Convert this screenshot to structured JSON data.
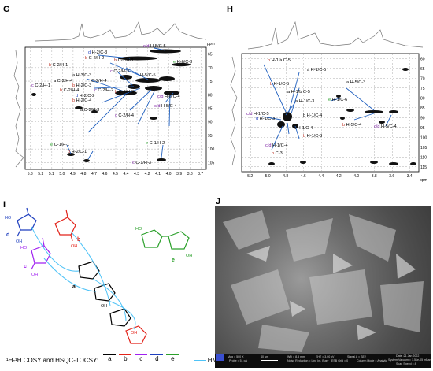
{
  "panels": {
    "G": {
      "letter": "G",
      "ppm_label": "ppm",
      "x_ticks": [
        "5.3",
        "5.2",
        "5.1",
        "5.0",
        "4.9",
        "4.8",
        "4.7",
        "4.6",
        "4.5",
        "4.4",
        "4.3",
        "4.2",
        "4.1",
        "4.0",
        "3.9",
        "3.8",
        "3.7"
      ],
      "y_ticks": [
        "65",
        "70",
        "75",
        "80",
        "85",
        "90",
        "95",
        "100",
        "105"
      ],
      "labels": [
        {
          "pre": "c/d",
          "text": "H-5/C-5"
        },
        {
          "pre": "d",
          "text": "H-2/C-3"
        },
        {
          "pre": "b",
          "text": "C-2/H-2"
        },
        {
          "pre": "b",
          "text": "C-2/H-3"
        },
        {
          "pre": "e",
          "text": "H-6/C-3"
        },
        {
          "pre": "b",
          "text": "C-2/H-1"
        },
        {
          "pre": "c",
          "text": "C-2/H-3"
        },
        {
          "pre": "a",
          "text": "H-3/C-3"
        },
        {
          "pre": "",
          "text": "H-5/C-5"
        },
        {
          "pre": "a",
          "text": "C-2/H-4"
        },
        {
          "pre": "",
          "text": "C-2/H-4"
        },
        {
          "pre": "c",
          "text": "C-2/H-1"
        },
        {
          "pre": "b",
          "text": "H-2/C-3"
        },
        {
          "pre": "b",
          "text": "C-2/H-4"
        },
        {
          "pre": "c",
          "text": "C-2/H-2"
        },
        {
          "pre": "b",
          "text": "C-2/H-5"
        },
        {
          "pre": "d",
          "text": "H-2/C-2"
        },
        {
          "pre": "c/d",
          "text": "H-6/C-4"
        },
        {
          "pre": "b",
          "text": "H-2/C-4"
        },
        {
          "pre": "c/d",
          "text": "H-5/C-4"
        },
        {
          "pre": "a",
          "text": "C-2/H-3"
        },
        {
          "pre": "c",
          "text": "C-2/H-4"
        },
        {
          "pre": "e",
          "text": "C-1/H-1"
        },
        {
          "pre": "e",
          "text": "C-1/H-2"
        },
        {
          "pre": "b",
          "text": "H-2/C-1"
        },
        {
          "pre": "c",
          "text": "C-1/H-3"
        }
      ]
    },
    "H": {
      "letter": "H",
      "ppm_label": "ppm",
      "x_ticks": [
        "5.2",
        "5.0",
        "4.8",
        "4.6",
        "4.4",
        "4.2",
        "4.0",
        "3.8",
        "3.6",
        "3.4"
      ],
      "y_ticks": [
        "60",
        "65",
        "70",
        "75",
        "80",
        "85",
        "90",
        "95",
        "100",
        "105",
        "110",
        "115"
      ],
      "labels": [
        {
          "pre": "b",
          "text": "H-1/a C-5"
        },
        {
          "pre": "",
          "text": "a H-1/C-5"
        },
        {
          "pre": "b",
          "text": "H-1/C-5"
        },
        {
          "pre": "",
          "text": "a H-1/b C-5"
        },
        {
          "pre": "a",
          "text": "H-5/C-3"
        },
        {
          "pre": "a",
          "text": "H-1/C-3"
        },
        {
          "pre": "c/d",
          "text": "H-1/C-5"
        },
        {
          "pre": "d",
          "text": "H-1/C-3"
        },
        {
          "pre": "e",
          "text": "H-1/C-6"
        },
        {
          "pre": "",
          "text": "b H-1/C-4"
        },
        {
          "pre": "a",
          "text": "H-1/C-4"
        },
        {
          "pre": "b",
          "text": "H-5/C-4"
        },
        {
          "pre": "c/d",
          "text": "H-5/C-4"
        },
        {
          "pre": "b",
          "text": "H-1/C-3"
        },
        {
          "pre": "c/d",
          "text": "H-1/C-4"
        },
        {
          "pre": "b",
          "text": "C-3"
        }
      ]
    },
    "I": {
      "letter": "I",
      "residue_labels": [
        "d",
        "c",
        "b",
        "a",
        "e"
      ],
      "substituents": [
        "HO",
        "OH",
        "HO",
        "OH",
        "OH",
        "OH",
        "OH",
        "HO",
        "OH"
      ],
      "legend": {
        "cosy_text": "¹H-¹H COSY and HSQC-TOCSY:",
        "keys": [
          {
            "letter": "a",
            "color": "#000000"
          },
          {
            "letter": "b",
            "color": "#e2231a"
          },
          {
            "letter": "c",
            "color": "#a020f0"
          },
          {
            "letter": "d",
            "color": "#1f3fbf"
          },
          {
            "letter": "e",
            "color": "#2aa02a"
          }
        ],
        "hmbc_text": "HMBC"
      }
    },
    "J": {
      "letter": "J",
      "info": [
        "Mag = 500 X",
        "WD = 8.5 mm",
        "EHT = 3.00 kV",
        "Signal A = SE2",
        "Date :21 Jan 2022",
        "I Probe = 51 pA",
        "Noise Reduction = Line Int. Busy",
        "ESB Grid = 0",
        "Column Mode = Analytic",
        "System Vacuum = 1.51e-05 mBar",
        "Scan Speed = 8",
        "40 µm"
      ]
    }
  }
}
